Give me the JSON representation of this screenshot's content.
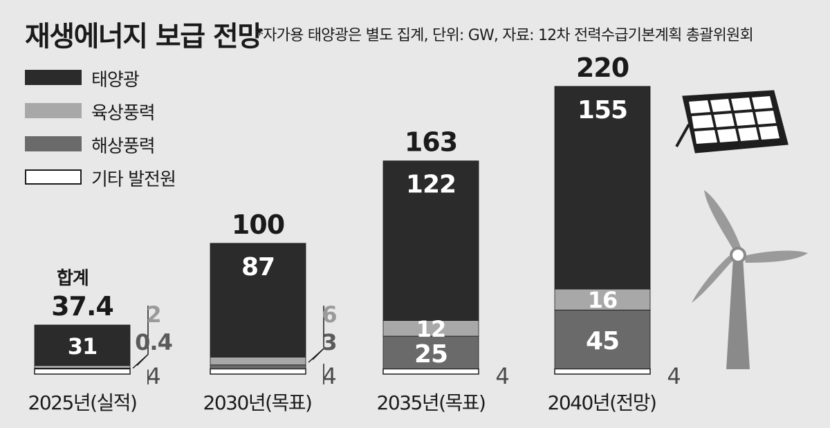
{
  "title": "재생에너지 보급 전망",
  "subtitle": "*자가용 태양광은 별도 집계, 단위: GW, 자료: 12차 전력수급기본계획 총괄위원회",
  "total_caption": "합계",
  "colors": {
    "solar": "#2b2b2b",
    "onshore": "#a8a8a8",
    "offshore": "#6a6a6a",
    "other": "#ffffff",
    "background": "#e8e8e8"
  },
  "icons": [
    "solar-panel-icon",
    "wind-turbine-icon"
  ],
  "chart_data": {
    "type": "bar",
    "stacked": true,
    "title": "재생에너지 보급 전망",
    "unit": "GW",
    "categories": [
      "2025년(실적)",
      "2030년(목표)",
      "2035년(목표)",
      "2040년(전망)"
    ],
    "totals": [
      "37.4",
      "100",
      "163",
      "220"
    ],
    "series": [
      {
        "key": "solar",
        "name": "태양광",
        "values": [
          31,
          87,
          122,
          155
        ],
        "labels": [
          "31",
          "87",
          "122",
          "155"
        ]
      },
      {
        "key": "onshore",
        "name": "육상풍력",
        "values": [
          2,
          6,
          12,
          16
        ],
        "labels": [
          "2",
          "6",
          "12",
          "16"
        ]
      },
      {
        "key": "offshore",
        "name": "해상풍력",
        "values": [
          0.4,
          3,
          25,
          45
        ],
        "labels": [
          "0.4",
          "3",
          "25",
          "45"
        ]
      },
      {
        "key": "other",
        "name": "기타 발전원",
        "values": [
          4,
          4,
          4,
          4
        ],
        "labels": [
          "4",
          "4",
          "4",
          "4"
        ]
      }
    ],
    "legend_position": "top-left",
    "grid": false
  }
}
